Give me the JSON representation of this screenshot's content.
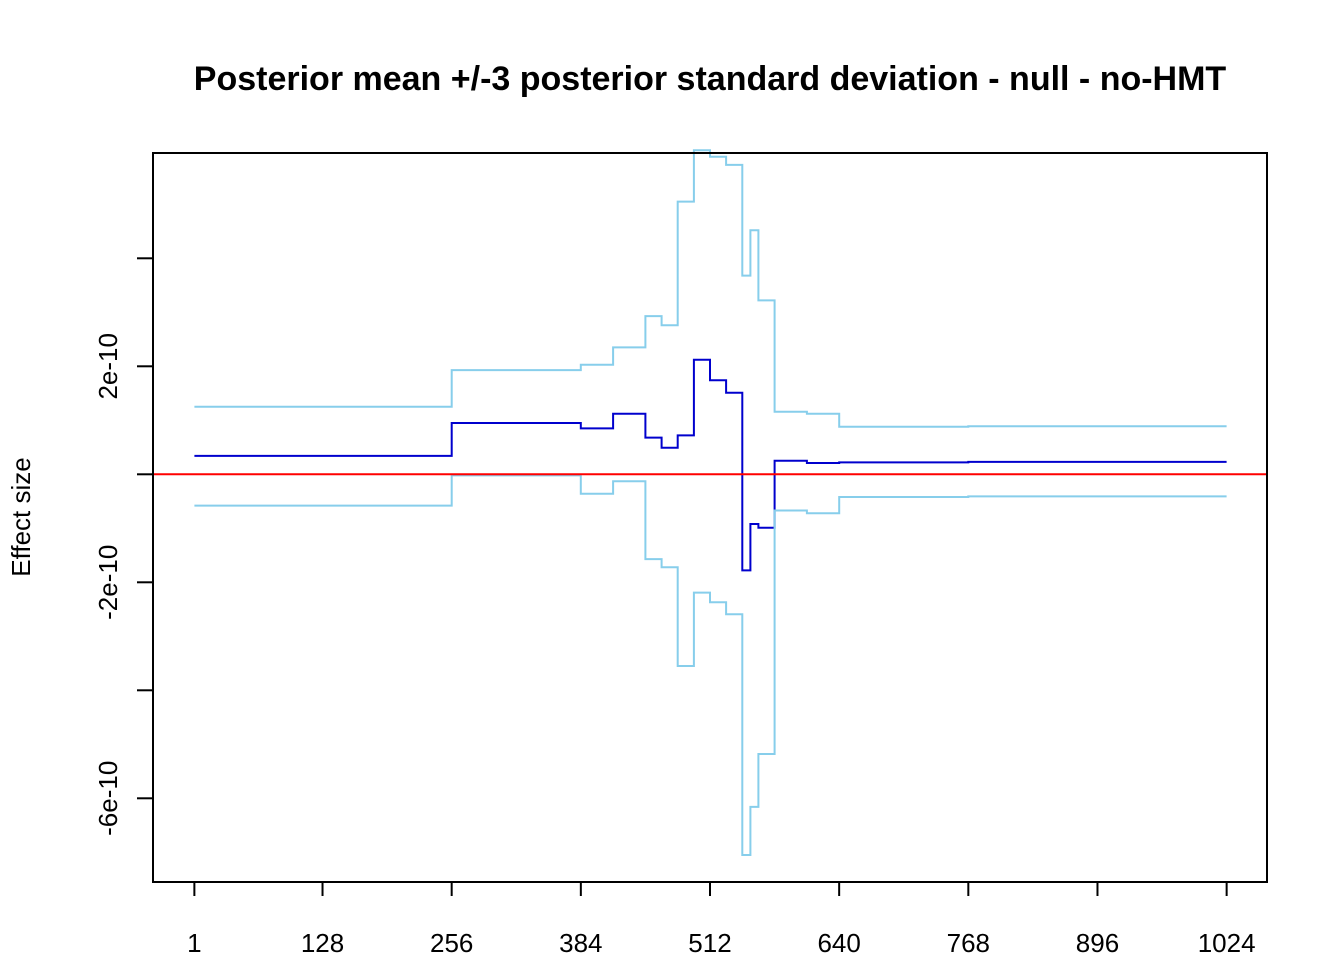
{
  "chart_data": {
    "type": "line",
    "title": "Posterior mean +/-3 posterior standard deviation - null - no-HMT",
    "xlabel": "",
    "ylabel": "Effect size",
    "xlim": [
      -40,
      1064
    ],
    "ylim": [
      -7.55e-10,
      5.95e-10
    ],
    "x_ticks": [
      1,
      128,
      256,
      384,
      512,
      640,
      768,
      896,
      1024
    ],
    "x_tick_labels": [
      "1",
      "128",
      "256",
      "384",
      "512",
      "640",
      "768",
      "896",
      "1024"
    ],
    "y_ticks": [
      -6e-10,
      -4e-10,
      -2e-10,
      0,
      2e-10,
      4e-10
    ],
    "y_tick_labels": [
      "-6e-10",
      "",
      "-2e-10",
      "",
      "2e-10",
      ""
    ],
    "grid": false,
    "reference_line": {
      "y": 0,
      "color": "#ff0000"
    },
    "series": [
      {
        "role": "upper",
        "color": "#87ceeb",
        "steps": [
          [
            1,
            1.25e-10
          ],
          [
            256,
            1.93e-10
          ],
          [
            384,
            2.03e-10
          ],
          [
            416,
            2.35e-10
          ],
          [
            448,
            2.93e-10
          ],
          [
            464,
            2.76e-10
          ],
          [
            480,
            5.05e-10
          ],
          [
            496,
            6e-10
          ],
          [
            512,
            5.88e-10
          ],
          [
            528,
            5.73e-10
          ],
          [
            544,
            3.68e-10
          ],
          [
            552,
            4.52e-10
          ],
          [
            560,
            3.22e-10
          ],
          [
            576,
            1.16e-10
          ],
          [
            608,
            1.12e-10
          ],
          [
            640,
            8.8e-11
          ],
          [
            768,
            8.9e-11
          ],
          [
            1024,
            8.9e-11
          ]
        ]
      },
      {
        "role": "mean",
        "color": "#0000cd",
        "steps": [
          [
            1,
            3.4e-11
          ],
          [
            256,
            9.5e-11
          ],
          [
            384,
            8.5e-11
          ],
          [
            416,
            1.12e-10
          ],
          [
            448,
            6.8e-11
          ],
          [
            464,
            4.9e-11
          ],
          [
            480,
            7.2e-11
          ],
          [
            496,
            2.12e-10
          ],
          [
            512,
            1.74e-10
          ],
          [
            528,
            1.51e-10
          ],
          [
            544,
            -1.78e-10
          ],
          [
            552,
            -9.2e-11
          ],
          [
            560,
            -9.9e-11
          ],
          [
            576,
            2.5e-11
          ],
          [
            608,
            2.1e-11
          ],
          [
            640,
            2.2e-11
          ],
          [
            768,
            2.3e-11
          ],
          [
            1024,
            2.3e-11
          ]
        ]
      },
      {
        "role": "lower",
        "color": "#87ceeb",
        "steps": [
          [
            1,
            -5.8e-11
          ],
          [
            256,
            -2e-12
          ],
          [
            384,
            -3.6e-11
          ],
          [
            416,
            -1.3e-11
          ],
          [
            448,
            -1.57e-10
          ],
          [
            464,
            -1.72e-10
          ],
          [
            480,
            -3.55e-10
          ],
          [
            496,
            -2.19e-10
          ],
          [
            512,
            -2.37e-10
          ],
          [
            528,
            -2.59e-10
          ],
          [
            544,
            -7.05e-10
          ],
          [
            552,
            -6.16e-10
          ],
          [
            560,
            -5.18e-10
          ],
          [
            576,
            -6.7e-11
          ],
          [
            608,
            -7.2e-11
          ],
          [
            640,
            -4.2e-11
          ],
          [
            768,
            -4.1e-11
          ],
          [
            1024,
            -4.1e-11
          ]
        ]
      }
    ]
  }
}
